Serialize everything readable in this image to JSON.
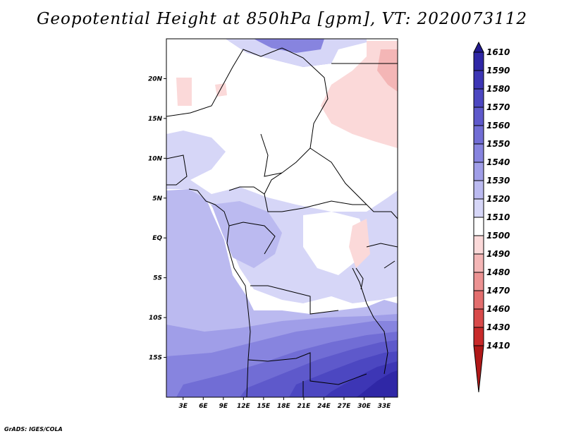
{
  "title": "Geopotential Height at 850hPa [gpm], VT: 2020073112",
  "credit": "GrADS: IGES/COLA",
  "axes": {
    "lat_labels": [
      "20N",
      "15N",
      "10N",
      "5N",
      "EQ",
      "5S",
      "10S",
      "15S"
    ],
    "lat_values": [
      20,
      15,
      10,
      5,
      0,
      -5,
      -10,
      -15
    ],
    "lon_labels": [
      "3E",
      "6E",
      "9E",
      "12E",
      "15E",
      "18E",
      "21E",
      "24E",
      "27E",
      "30E",
      "33E"
    ],
    "lon_values": [
      3,
      6,
      9,
      12,
      15,
      18,
      21,
      24,
      27,
      30,
      33
    ],
    "lon_range": [
      0.5,
      35
    ],
    "lat_range": [
      -20,
      25
    ]
  },
  "colorbar": {
    "labels": [
      "1610",
      "1590",
      "1580",
      "1570",
      "1560",
      "1550",
      "1540",
      "1530",
      "1520",
      "1510",
      "1500",
      "1490",
      "1480",
      "1470",
      "1460",
      "1430",
      "1410"
    ],
    "colors": [
      "#221a8f",
      "#2f27a6",
      "#3d36b5",
      "#4c47c1",
      "#5e59cb",
      "#716dd5",
      "#8784df",
      "#a09ee8",
      "#bbbaf0",
      "#d6d6f7",
      "#ffffff",
      "#fbd9d9",
      "#f4b6b6",
      "#ec9292",
      "#e36e6e",
      "#d84a4a",
      "#c82a2a",
      "#b01818"
    ]
  }
}
